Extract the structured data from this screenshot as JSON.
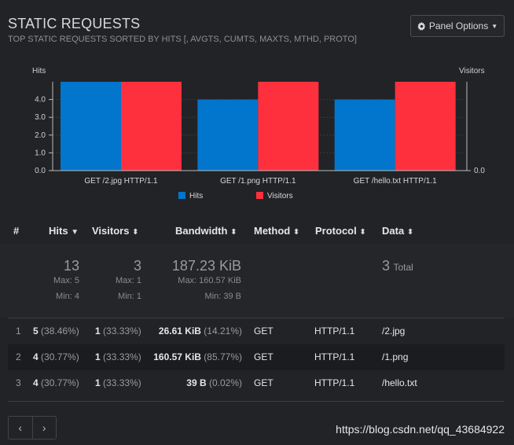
{
  "header": {
    "title": "STATIC REQUESTS",
    "subtitle": "TOP STATIC REQUESTS SORTED BY HITS [, AVGTS, CUMTS, MAXTS, MTHD, PROTO]",
    "panel_options": "Panel Options"
  },
  "chart_data": {
    "type": "bar",
    "categories": [
      "GET /2.jpg HTTP/1.1",
      "GET /1.png HTTP/1.1",
      "GET /hello.txt HTTP/1.1"
    ],
    "series": [
      {
        "name": "Hits",
        "values": [
          5,
          4,
          4
        ],
        "color": "#0275cc"
      },
      {
        "name": "Visitors",
        "values": [
          1,
          1,
          1
        ],
        "color": "#ff303e"
      }
    ],
    "left_axis": {
      "label": "Hits",
      "ylim": [
        0,
        5
      ],
      "ticks": [
        "0.0",
        "1.0",
        "2.0",
        "3.0",
        "4.0"
      ]
    },
    "right_axis": {
      "label": "Visitors",
      "ylim": [
        0,
        1
      ],
      "ticks": [
        "0.0"
      ]
    },
    "grid": true,
    "legend": "bottom-center"
  },
  "table": {
    "columns": {
      "index": "#",
      "hits": "Hits",
      "visitors": "Visitors",
      "bandwidth": "Bandwidth",
      "method": "Method",
      "protocol": "Protocol",
      "data": "Data"
    },
    "summary": {
      "hits_total": "13",
      "hits_max": "Max: 5",
      "hits_min": "Min: 4",
      "visitors_total": "3",
      "visitors_max": "Max: 1",
      "visitors_min": "Min: 1",
      "bw_total": "187.23 KiB",
      "bw_max": "Max: 160.57 KiB",
      "bw_min": "Min: 39 B",
      "data_total": "3",
      "data_total_label": "Total"
    },
    "rows": [
      {
        "idx": "1",
        "hits": "5",
        "hits_pct": "(38.46%)",
        "visitors": "1",
        "visitors_pct": "(33.33%)",
        "bw": "26.61 KiB",
        "bw_pct": "(14.21%)",
        "method": "GET",
        "protocol": "HTTP/1.1",
        "data": "/2.jpg"
      },
      {
        "idx": "2",
        "hits": "4",
        "hits_pct": "(30.77%)",
        "visitors": "1",
        "visitors_pct": "(33.33%)",
        "bw": "160.57 KiB",
        "bw_pct": "(85.77%)",
        "method": "GET",
        "protocol": "HTTP/1.1",
        "data": "/1.png"
      },
      {
        "idx": "3",
        "hits": "4",
        "hits_pct": "(30.77%)",
        "visitors": "1",
        "visitors_pct": "(33.33%)",
        "bw": "39 B",
        "bw_pct": "(0.02%)",
        "method": "GET",
        "protocol": "HTTP/1.1",
        "data": "/hello.txt"
      }
    ]
  },
  "pager": {
    "prev": "‹",
    "next": "›"
  },
  "watermark": "https://blog.csdn.net/qq_43684922",
  "colors": {
    "accent_blue": "#0275cc",
    "accent_red": "#ff303e"
  }
}
